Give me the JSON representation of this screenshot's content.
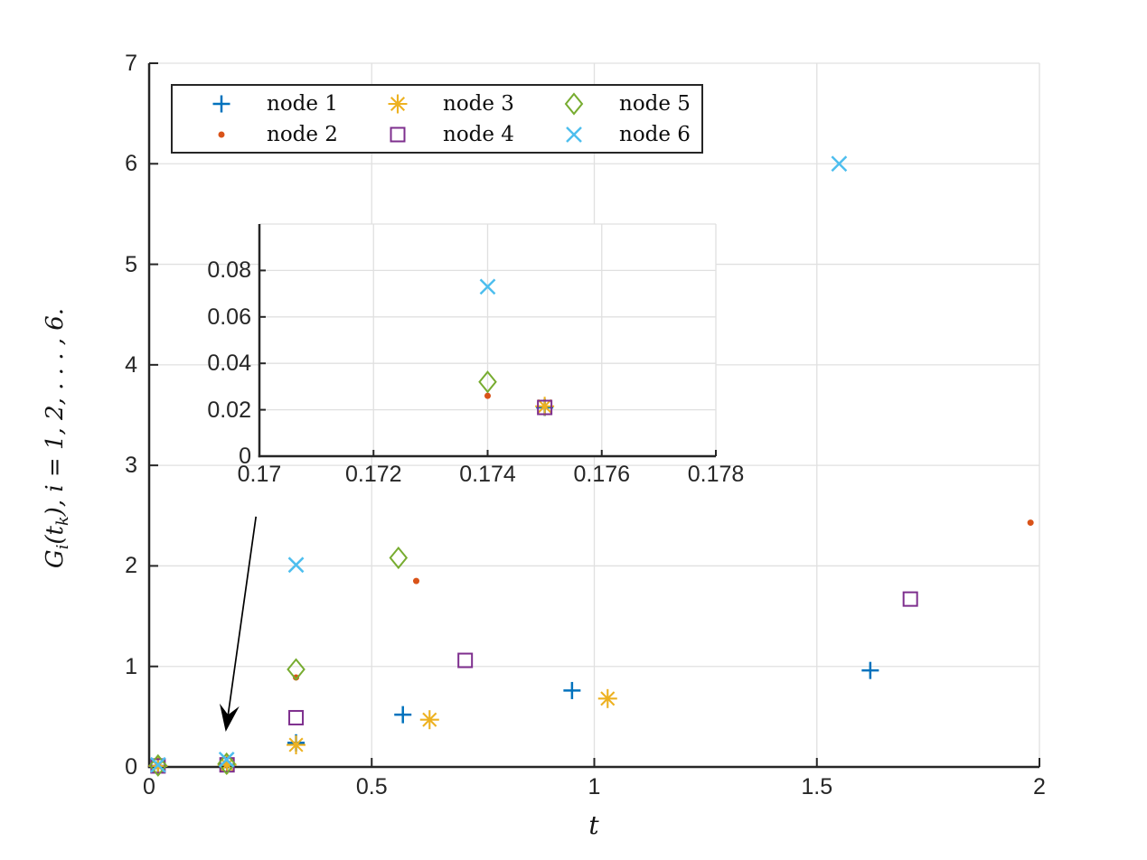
{
  "figure": {
    "background": "#ffffff",
    "axis_color": "#262626",
    "grid_color": "#e0e0e0",
    "arrow_color": "#000000"
  },
  "xlabel_text": "t",
  "ylabel_parts": {
    "base": "G",
    "sub1": "i",
    "open": "(t",
    "sub2": "k",
    "close": ")",
    "rest": ", i = 1, 2, . . . , 6."
  },
  "chart_data": [
    {
      "id": "main",
      "type": "scatter",
      "title": "",
      "xlabel": "t",
      "ylabel": "G_i(t_k), i = 1, 2, . . . , 6.",
      "xlim": [
        0,
        2
      ],
      "ylim": [
        0,
        7
      ],
      "xticks": [
        0,
        0.5,
        1,
        1.5,
        2
      ],
      "xtick_labels": [
        "0",
        "0.5",
        "1",
        "1.5",
        "2"
      ],
      "yticks": [
        0,
        1,
        2,
        3,
        4,
        5,
        6,
        7
      ],
      "ytick_labels": [
        "0",
        "1",
        "2",
        "3",
        "4",
        "5",
        "6",
        "7"
      ],
      "grid": true,
      "legend_position": "top-left-inside",
      "series": [
        {
          "name": "node 1",
          "marker": "plus",
          "color": "#0072BD",
          "points": [
            [
              0.02,
              0.01
            ],
            [
              0.175,
              0.021
            ],
            [
              0.33,
              0.24
            ],
            [
              0.57,
              0.52
            ],
            [
              0.95,
              0.76
            ],
            [
              1.62,
              0.96
            ]
          ]
        },
        {
          "name": "node 2",
          "marker": "dot",
          "color": "#D95319",
          "points": [
            [
              0.02,
              0.012
            ],
            [
              0.174,
              0.026
            ],
            [
              0.33,
              0.89
            ],
            [
              0.6,
              1.85
            ],
            [
              1.98,
              2.43
            ]
          ]
        },
        {
          "name": "node 3",
          "marker": "asterisk",
          "color": "#EDB120",
          "points": [
            [
              0.02,
              0.01
            ],
            [
              0.175,
              0.0215
            ],
            [
              0.33,
              0.22
            ],
            [
              0.63,
              0.47
            ],
            [
              1.03,
              0.68
            ]
          ]
        },
        {
          "name": "node 4",
          "marker": "square",
          "color": "#7E2F8E",
          "points": [
            [
              0.02,
              0.01
            ],
            [
              0.175,
              0.021
            ],
            [
              0.33,
              0.49
            ],
            [
              0.71,
              1.06
            ],
            [
              1.71,
              1.67
            ]
          ]
        },
        {
          "name": "node 5",
          "marker": "diamond",
          "color": "#77AC30",
          "points": [
            [
              0.02,
              0.015
            ],
            [
              0.174,
              0.032
            ],
            [
              0.33,
              0.97
            ],
            [
              0.56,
              2.08
            ]
          ]
        },
        {
          "name": "node 6",
          "marker": "x",
          "color": "#4DBEEE",
          "points": [
            [
              0.02,
              0.02
            ],
            [
              0.174,
              0.073
            ],
            [
              0.33,
              2.01
            ],
            [
              1.55,
              6.0
            ]
          ]
        }
      ]
    },
    {
      "id": "inset",
      "type": "scatter",
      "title": "",
      "xlabel": "",
      "ylabel": "",
      "xlim": [
        0.17,
        0.178
      ],
      "ylim": [
        0,
        0.1
      ],
      "xticks": [
        0.17,
        0.172,
        0.174,
        0.176,
        0.178
      ],
      "xtick_labels": [
        "0.17",
        "0.172",
        "0.174",
        "0.176",
        "0.178"
      ],
      "yticks": [
        0,
        0.02,
        0.04,
        0.06,
        0.08
      ],
      "ytick_labels": [
        "0",
        "0.02",
        "0.04",
        "0.06",
        "0.08"
      ],
      "grid": true,
      "series": [
        {
          "name": "node 1",
          "marker": "plus",
          "color": "#0072BD",
          "points": [
            [
              0.175,
              0.021
            ]
          ]
        },
        {
          "name": "node 2",
          "marker": "dot",
          "color": "#D95319",
          "points": [
            [
              0.174,
              0.026
            ]
          ]
        },
        {
          "name": "node 3",
          "marker": "asterisk",
          "color": "#EDB120",
          "points": [
            [
              0.175,
              0.0215
            ]
          ]
        },
        {
          "name": "node 4",
          "marker": "square",
          "color": "#7E2F8E",
          "points": [
            [
              0.175,
              0.021
            ]
          ]
        },
        {
          "name": "node 5",
          "marker": "diamond",
          "color": "#77AC30",
          "points": [
            [
              0.174,
              0.032
            ]
          ]
        },
        {
          "name": "node 6",
          "marker": "x",
          "color": "#4DBEEE",
          "points": [
            [
              0.174,
              0.073
            ]
          ]
        }
      ]
    }
  ],
  "annotation": {
    "type": "arrow",
    "from_data": [
      0.24,
      2.49
    ],
    "to_data": [
      0.172,
      0.35
    ]
  }
}
